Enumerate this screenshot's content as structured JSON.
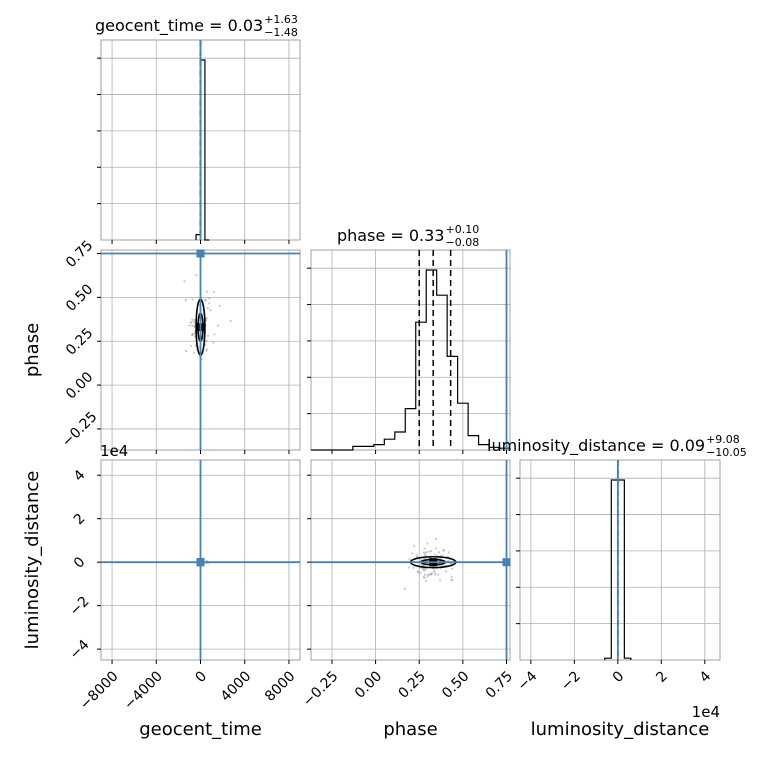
{
  "chart_data": {
    "type": "corner",
    "parameters": [
      "geocent_time",
      "phase",
      "luminosity_distance"
    ],
    "axis_labels": {
      "geocent_time": "geocent_time",
      "phase": "phase",
      "luminosity_distance": "luminosity_distance"
    },
    "titles": [
      {
        "parameter": "geocent_time",
        "prefix": "geocent_time = ",
        "value": "0.03",
        "plus": "+1.63",
        "minus": "−1.48"
      },
      {
        "parameter": "phase",
        "prefix": "phase = ",
        "value": "0.33",
        "plus": "+0.10",
        "minus": "−0.08"
      },
      {
        "parameter": "luminosity_distance",
        "prefix": "luminosity_distance = ",
        "value": "0.09",
        "plus": "+9.08",
        "minus": "−10.05"
      }
    ],
    "ranges": {
      "geocent_time": [
        -9000,
        9000
      ],
      "phase": [
        -0.37,
        0.77
      ],
      "luminosity_distance": [
        -4.5,
        4.7
      ]
    },
    "ticks": {
      "geocent_time": {
        "values": [
          -8000,
          -4000,
          0,
          4000,
          8000
        ],
        "labels": [
          "−8000",
          "−4000",
          "0",
          "4000",
          "8000"
        ]
      },
      "phase": {
        "values": [
          -0.25,
          0.0,
          0.25,
          0.5,
          0.75
        ],
        "labels": [
          "−0.25",
          "0.00",
          "0.25",
          "0.50",
          "0.75"
        ]
      },
      "luminosity_distance": {
        "values": [
          -4,
          -2,
          0,
          2,
          4
        ],
        "labels": [
          "−4",
          "−2",
          "0",
          "2",
          "4"
        ]
      }
    },
    "offset_text": {
      "luminosity_distance": "1e4"
    },
    "truths": {
      "geocent_time": 0,
      "phase": 0.75,
      "luminosity_distance": 0
    },
    "quantiles": {
      "geocent_time": [
        -1.45,
        0.03,
        1.66
      ],
      "phase": [
        0.25,
        0.33,
        0.43
      ],
      "luminosity_distance": [
        -0.001,
        0.0,
        0.0009
      ]
    },
    "histograms": {
      "geocent_time": {
        "edges": [
          -400,
          0,
          400,
          800
        ],
        "counts": [
          0.03,
          1.0,
          0.0
        ]
      },
      "phase": {
        "edges": [
          -0.37,
          -0.31,
          -0.25,
          -0.19,
          -0.13,
          -0.07,
          -0.01,
          0.05,
          0.11,
          0.17,
          0.23,
          0.29,
          0.35,
          0.41,
          0.47,
          0.53,
          0.59,
          0.65,
          0.71,
          0.77
        ],
        "counts": [
          0.0,
          0.0,
          0.0,
          0.0,
          0.02,
          0.02,
          0.03,
          0.06,
          0.1,
          0.23,
          0.71,
          1.0,
          0.86,
          0.52,
          0.26,
          0.08,
          0.03,
          0.015,
          0.01
        ]
      },
      "luminosity_distance": {
        "edges": [
          -0.6,
          -0.3,
          0.0,
          0.3,
          0.6
        ],
        "counts": [
          0.01,
          1.0,
          1.0,
          0.01
        ]
      }
    },
    "contours": {
      "phase_vs_geocent_time": [
        {
          "cx": 0,
          "cy": 0.33,
          "rx": 400,
          "ry": 0.16
        },
        {
          "cx": 0,
          "cy": 0.33,
          "rx": 220,
          "ry": 0.08
        }
      ],
      "luminosity_distance_vs_geocent_time": [
        {
          "cx": 0,
          "cy": 0.0,
          "rx": 250,
          "ry": 0.05
        }
      ],
      "luminosity_distance_vs_phase": [
        {
          "cx": 0.33,
          "cy": 0.0,
          "rx": 0.13,
          "ry": 0.25
        },
        {
          "cx": 0.33,
          "cy": 0.0,
          "rx": 0.07,
          "ry": 0.12
        }
      ]
    },
    "grid": true
  }
}
